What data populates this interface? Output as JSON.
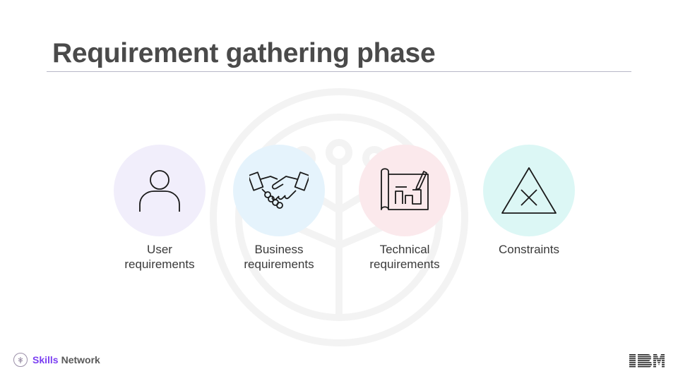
{
  "slide": {
    "title": "Requirement gathering phase"
  },
  "items": [
    {
      "line1": "User",
      "line2": "requirements",
      "icon": "user-icon",
      "bg_color": "#f1eefb"
    },
    {
      "line1": "Business",
      "line2": "requirements",
      "icon": "handshake-icon",
      "bg_color": "#e5f3fc"
    },
    {
      "line1": "Technical",
      "line2": "requirements",
      "icon": "blueprint-icon",
      "bg_color": "#fbe9ec"
    },
    {
      "line1": "Constraints",
      "line2": "",
      "icon": "warning-triangle-icon",
      "bg_color": "#dcf7f5"
    }
  ],
  "footer": {
    "brand_bold": "Skills",
    "brand_rest": "Network",
    "company_logo": "IBM"
  },
  "colors": {
    "title": "#4a4a4a",
    "accent_purple": "#7b3ff2",
    "rule": "#b8b8c8"
  }
}
